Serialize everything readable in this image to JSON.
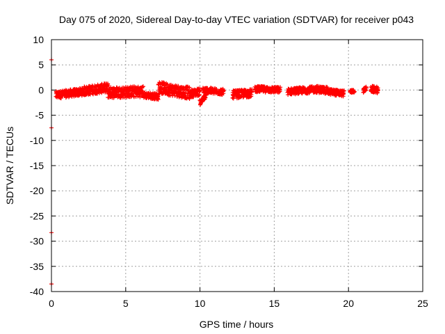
{
  "chart_data": {
    "type": "scatter",
    "title": "Day 075 of 2020, Sidereal Day-to-day VTEC variation (SDTVAR) for receiver p043",
    "xlabel": "GPS time / hours",
    "ylabel": "SDTVAR / TECUs",
    "xlim": [
      0,
      25
    ],
    "ylim": [
      -40,
      10
    ],
    "xticks": [
      0,
      5,
      10,
      15,
      20,
      25
    ],
    "yticks": [
      10,
      5,
      0,
      -5,
      -10,
      -15,
      -20,
      -25,
      -30,
      -35,
      -40
    ],
    "grid": true,
    "marker": "+",
    "series_color": "#ff0000",
    "outliers": [
      {
        "x": 0.0,
        "y": 6.0
      },
      {
        "x": 0.0,
        "y": -7.5
      },
      {
        "x": 0.0,
        "y": -28.3
      },
      {
        "x": 0.0,
        "y": -38.5
      }
    ],
    "segments": [
      {
        "x0": 0.3,
        "x1": 2.2,
        "y_start": -1.0,
        "y_end": -0.3,
        "spread": 1.5
      },
      {
        "x0": 2.2,
        "x1": 3.8,
        "y_start": -0.2,
        "y_end": 0.5,
        "spread": 1.8
      },
      {
        "x0": 3.8,
        "x1": 6.2,
        "y_start": -0.5,
        "y_end": -0.3,
        "spread": 2.2
      },
      {
        "x0": 6.2,
        "x1": 7.2,
        "y_start": -1.0,
        "y_end": -1.3,
        "spread": 1.2
      },
      {
        "x0": 7.2,
        "x1": 9.3,
        "y_start": 0.5,
        "y_end": -0.6,
        "spread": 2.4
      },
      {
        "x0": 9.3,
        "x1": 10.0,
        "y_start": -0.8,
        "y_end": -0.3,
        "spread": 1.5
      },
      {
        "x0": 10.0,
        "x1": 10.4,
        "y_start": -2.5,
        "y_end": -1.2,
        "spread": 1.0
      },
      {
        "x0": 10.2,
        "x1": 11.6,
        "y_start": 0.0,
        "y_end": -0.4,
        "spread": 1.2
      },
      {
        "x0": 12.2,
        "x1": 13.5,
        "y_start": -0.9,
        "y_end": -0.6,
        "spread": 1.6
      },
      {
        "x0": 13.7,
        "x1": 15.4,
        "y_start": 0.2,
        "y_end": 0.0,
        "spread": 1.2
      },
      {
        "x0": 15.9,
        "x1": 17.7,
        "y_start": -0.3,
        "y_end": 0.1,
        "spread": 1.3
      },
      {
        "x0": 17.7,
        "x1": 18.6,
        "y_start": 0.2,
        "y_end": -0.1,
        "spread": 1.4
      },
      {
        "x0": 18.6,
        "x1": 19.7,
        "y_start": -0.3,
        "y_end": -0.7,
        "spread": 1.2
      },
      {
        "x0": 20.1,
        "x1": 20.4,
        "y_start": -0.3,
        "y_end": -0.2,
        "spread": 0.6
      },
      {
        "x0": 21.0,
        "x1": 21.2,
        "y_start": -0.1,
        "y_end": 0.3,
        "spread": 0.8
      },
      {
        "x0": 21.5,
        "x1": 22.0,
        "y_start": 0.2,
        "y_end": 0.0,
        "spread": 1.3
      }
    ]
  }
}
